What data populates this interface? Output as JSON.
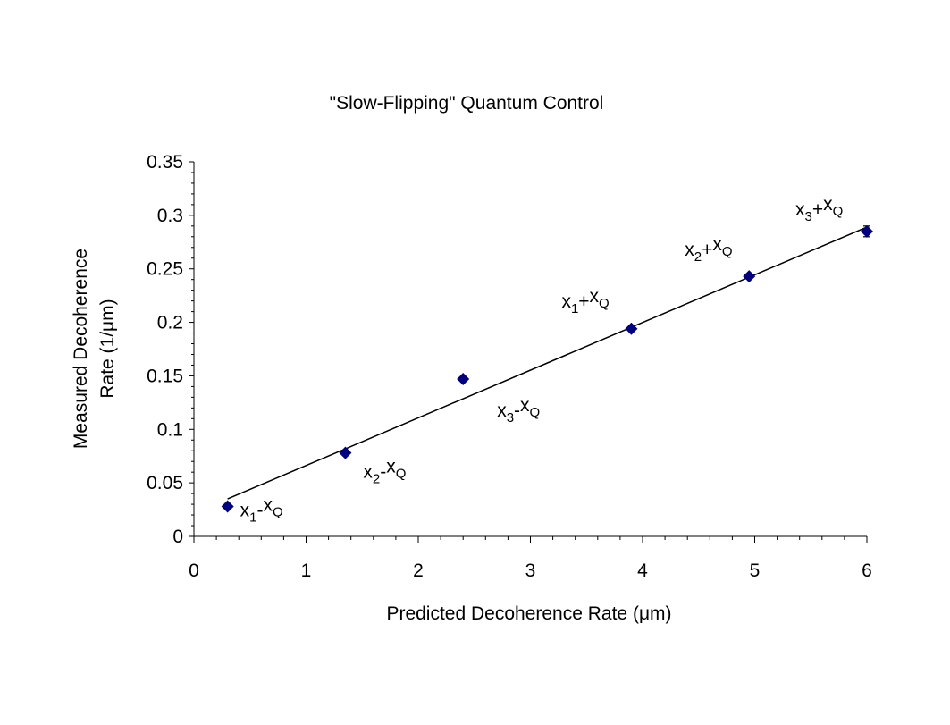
{
  "chart_data": {
    "type": "scatter",
    "title": "\"Slow-Flipping\" Quantum Control",
    "xlabel": "Predicted Decoherence Rate (μm)",
    "ylabel_line1": "Measured Decoherence",
    "ylabel_line2": "Rate (1/μm)",
    "xlim": [
      0,
      6
    ],
    "ylim": [
      0,
      0.35
    ],
    "x_ticks": [
      "0",
      "1",
      "2",
      "3",
      "4",
      "5",
      "6"
    ],
    "y_ticks": [
      "0",
      "0.05",
      "0.1",
      "0.15",
      "0.2",
      "0.25",
      "0.3",
      "0.35"
    ],
    "grid": false,
    "marker_color": "#000080",
    "line_color": "#000000",
    "points": [
      {
        "x": 0.3,
        "y": 0.028,
        "yerr": 0.0,
        "base": "x",
        "sub1": "1",
        "op": "-",
        "base2": "x",
        "sub2": "Q"
      },
      {
        "x": 1.35,
        "y": 0.078,
        "yerr": 0.0,
        "base": "x",
        "sub1": "2",
        "op": "-",
        "base2": "x",
        "sub2": "Q"
      },
      {
        "x": 2.4,
        "y": 0.147,
        "yerr": 0.0,
        "base": "x",
        "sub1": "3",
        "op": "-",
        "base2": "x",
        "sub2": "Q"
      },
      {
        "x": 3.9,
        "y": 0.194,
        "yerr": 0.0,
        "base": "x",
        "sub1": "1",
        "op": "+",
        "base2": "x",
        "sub2": "Q"
      },
      {
        "x": 4.95,
        "y": 0.243,
        "yerr": 0.0,
        "base": "x",
        "sub1": "2",
        "op": "+",
        "base2": "x",
        "sub2": "Q"
      },
      {
        "x": 6.0,
        "y": 0.285,
        "yerr": 0.005,
        "base": "x",
        "sub1": "3",
        "op": "+",
        "base2": "x",
        "sub2": "Q"
      }
    ],
    "fit_line": {
      "x": [
        0.3,
        6.0
      ],
      "y": [
        0.035,
        0.289
      ]
    }
  }
}
